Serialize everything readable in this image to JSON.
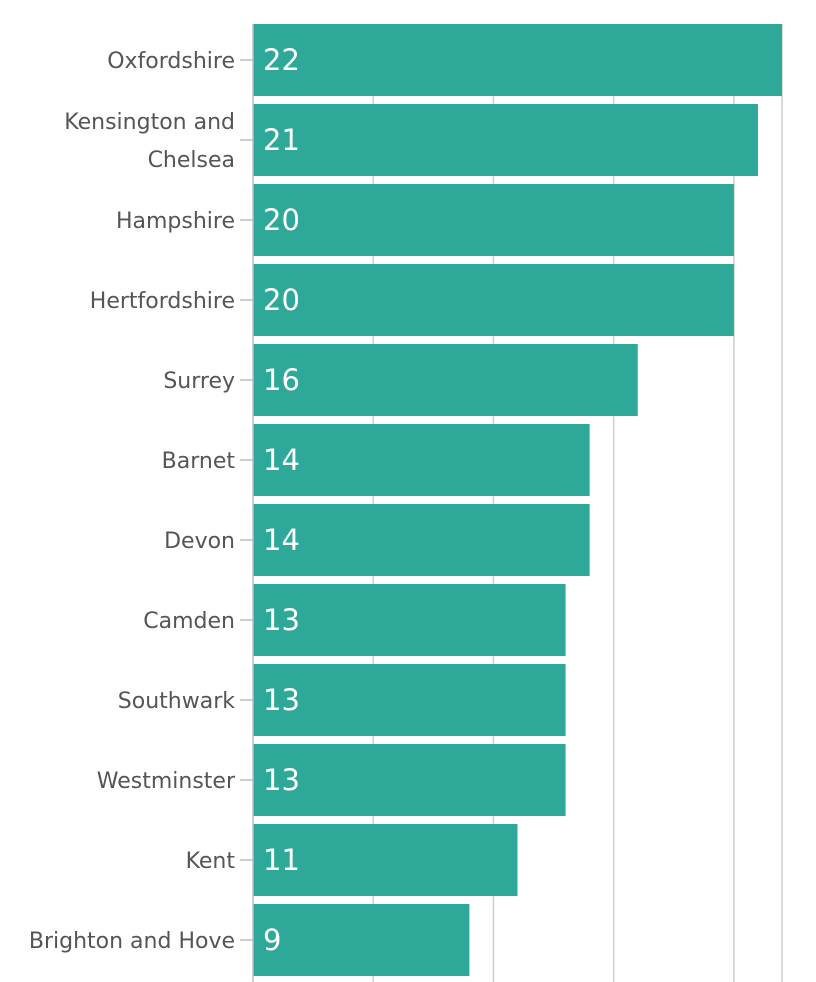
{
  "chart_data": {
    "type": "bar",
    "orientation": "horizontal",
    "categories": [
      "Oxfordshire",
      "Kensington and Chelsea",
      "Hampshire",
      "Hertfordshire",
      "Surrey",
      "Barnet",
      "Devon",
      "Camden",
      "Southwark",
      "Westminster",
      "Kent",
      "Brighton and Hove"
    ],
    "values": [
      22,
      21,
      20,
      20,
      16,
      14,
      14,
      13,
      13,
      13,
      11,
      9
    ],
    "value_labels": [
      "22",
      "21",
      "20",
      "20",
      "16",
      "14",
      "14",
      "13",
      "13",
      "13",
      "11",
      "9"
    ],
    "xlim": [
      0,
      22
    ],
    "x_gridlines": [
      0,
      5,
      10,
      15,
      20,
      22
    ],
    "x_tick_labels_shown": false,
    "grid": true,
    "legend": "none",
    "colors": {
      "bar": "#2ea899",
      "value_text": "#ffffff",
      "category_text": "#555555",
      "grid": "#cfcfcf"
    }
  }
}
